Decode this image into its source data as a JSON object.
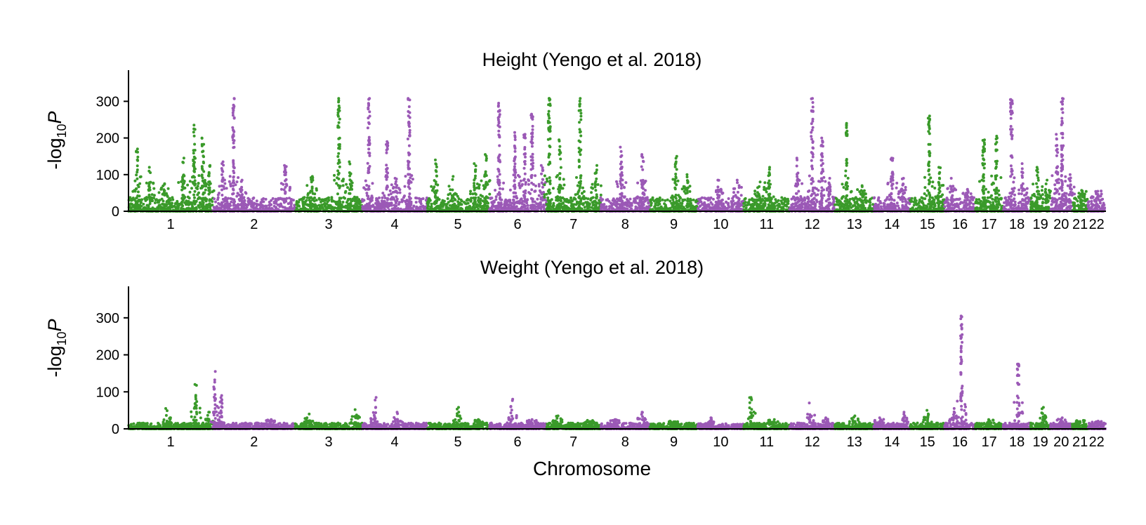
{
  "chart_data": [
    {
      "type": "scatter",
      "title": "Height (Yengo et al. 2018)",
      "ylabel_main": "-log",
      "ylabel_sub": "10",
      "ylabel_italic": "P",
      "xlabel": "",
      "ylim": [
        0,
        385
      ],
      "yticks": [
        0,
        100,
        200,
        300
      ],
      "colors": [
        "#3a9a2a",
        "#9b59b6"
      ],
      "chromosomes": [
        "1",
        "2",
        "3",
        "4",
        "5",
        "6",
        "7",
        "8",
        "9",
        "10",
        "11",
        "12",
        "13",
        "14",
        "15",
        "16",
        "17",
        "18",
        "19",
        "20",
        "21",
        "22"
      ],
      "peaks": [
        {
          "chr": "1",
          "pos": 0.1,
          "y": 170
        },
        {
          "chr": "1",
          "pos": 0.25,
          "y": 120
        },
        {
          "chr": "1",
          "pos": 0.42,
          "y": 75
        },
        {
          "chr": "1",
          "pos": 0.65,
          "y": 145
        },
        {
          "chr": "1",
          "pos": 0.78,
          "y": 235
        },
        {
          "chr": "1",
          "pos": 0.88,
          "y": 200
        },
        {
          "chr": "1",
          "pos": 0.96,
          "y": 125
        },
        {
          "chr": "2",
          "pos": 0.12,
          "y": 135
        },
        {
          "chr": "2",
          "pos": 0.25,
          "y": 308
        },
        {
          "chr": "2",
          "pos": 0.35,
          "y": 85
        },
        {
          "chr": "2",
          "pos": 0.88,
          "y": 125
        },
        {
          "chr": "3",
          "pos": 0.25,
          "y": 95
        },
        {
          "chr": "3",
          "pos": 0.65,
          "y": 308
        },
        {
          "chr": "3",
          "pos": 0.82,
          "y": 135
        },
        {
          "chr": "4",
          "pos": 0.1,
          "y": 308
        },
        {
          "chr": "4",
          "pos": 0.38,
          "y": 190
        },
        {
          "chr": "4",
          "pos": 0.52,
          "y": 90
        },
        {
          "chr": "4",
          "pos": 0.72,
          "y": 308
        },
        {
          "chr": "5",
          "pos": 0.15,
          "y": 140
        },
        {
          "chr": "5",
          "pos": 0.42,
          "y": 95
        },
        {
          "chr": "5",
          "pos": 0.78,
          "y": 130
        },
        {
          "chr": "5",
          "pos": 0.95,
          "y": 155
        },
        {
          "chr": "6",
          "pos": 0.18,
          "y": 295
        },
        {
          "chr": "6",
          "pos": 0.45,
          "y": 215
        },
        {
          "chr": "6",
          "pos": 0.62,
          "y": 210
        },
        {
          "chr": "6",
          "pos": 0.75,
          "y": 265
        },
        {
          "chr": "6",
          "pos": 0.92,
          "y": 125
        },
        {
          "chr": "7",
          "pos": 0.05,
          "y": 308
        },
        {
          "chr": "7",
          "pos": 0.25,
          "y": 195
        },
        {
          "chr": "7",
          "pos": 0.62,
          "y": 308
        },
        {
          "chr": "7",
          "pos": 0.92,
          "y": 125
        },
        {
          "chr": "8",
          "pos": 0.42,
          "y": 175
        },
        {
          "chr": "8",
          "pos": 0.85,
          "y": 155
        },
        {
          "chr": "9",
          "pos": 0.55,
          "y": 150
        },
        {
          "chr": "9",
          "pos": 0.78,
          "y": 100
        },
        {
          "chr": "10",
          "pos": 0.45,
          "y": 85
        },
        {
          "chr": "10",
          "pos": 0.88,
          "y": 85
        },
        {
          "chr": "11",
          "pos": 0.35,
          "y": 80
        },
        {
          "chr": "11",
          "pos": 0.55,
          "y": 120
        },
        {
          "chr": "12",
          "pos": 0.18,
          "y": 145
        },
        {
          "chr": "12",
          "pos": 0.5,
          "y": 308
        },
        {
          "chr": "12",
          "pos": 0.72,
          "y": 200
        },
        {
          "chr": "12",
          "pos": 0.88,
          "y": 90
        },
        {
          "chr": "13",
          "pos": 0.3,
          "y": 240
        },
        {
          "chr": "13",
          "pos": 0.7,
          "y": 70
        },
        {
          "chr": "14",
          "pos": 0.5,
          "y": 145
        },
        {
          "chr": "14",
          "pos": 0.8,
          "y": 90
        },
        {
          "chr": "15",
          "pos": 0.55,
          "y": 260
        },
        {
          "chr": "15",
          "pos": 0.85,
          "y": 120
        },
        {
          "chr": "16",
          "pos": 0.25,
          "y": 90
        },
        {
          "chr": "16",
          "pos": 0.75,
          "y": 60
        },
        {
          "chr": "17",
          "pos": 0.3,
          "y": 195
        },
        {
          "chr": "17",
          "pos": 0.75,
          "y": 205
        },
        {
          "chr": "18",
          "pos": 0.3,
          "y": 305
        },
        {
          "chr": "18",
          "pos": 0.7,
          "y": 130
        },
        {
          "chr": "19",
          "pos": 0.35,
          "y": 120
        },
        {
          "chr": "19",
          "pos": 0.8,
          "y": 85
        },
        {
          "chr": "20",
          "pos": 0.3,
          "y": 210
        },
        {
          "chr": "20",
          "pos": 0.55,
          "y": 308
        },
        {
          "chr": "20",
          "pos": 0.9,
          "y": 100
        },
        {
          "chr": "21",
          "pos": 0.6,
          "y": 55
        },
        {
          "chr": "22",
          "pos": 0.5,
          "y": 50
        }
      ]
    },
    {
      "type": "scatter",
      "title": "Weight (Yengo et al. 2018)",
      "ylabel_main": "-log",
      "ylabel_sub": "10",
      "ylabel_italic": "P",
      "xlabel": "Chromosome",
      "ylim": [
        0,
        385
      ],
      "yticks": [
        0,
        100,
        200,
        300
      ],
      "colors": [
        "#3a9a2a",
        "#9b59b6"
      ],
      "chromosomes": [
        "1",
        "2",
        "3",
        "4",
        "5",
        "6",
        "7",
        "8",
        "9",
        "10",
        "11",
        "12",
        "13",
        "14",
        "15",
        "16",
        "17",
        "18",
        "19",
        "20",
        "21",
        "22"
      ],
      "peaks": [
        {
          "chr": "1",
          "pos": 0.45,
          "y": 55
        },
        {
          "chr": "1",
          "pos": 0.8,
          "y": 120
        },
        {
          "chr": "1",
          "pos": 0.95,
          "y": 45
        },
        {
          "chr": "2",
          "pos": 0.02,
          "y": 155
        },
        {
          "chr": "2",
          "pos": 0.1,
          "y": 90
        },
        {
          "chr": "2",
          "pos": 0.7,
          "y": 25
        },
        {
          "chr": "3",
          "pos": 0.2,
          "y": 40
        },
        {
          "chr": "3",
          "pos": 0.9,
          "y": 52
        },
        {
          "chr": "4",
          "pos": 0.2,
          "y": 85
        },
        {
          "chr": "4",
          "pos": 0.55,
          "y": 45
        },
        {
          "chr": "5",
          "pos": 0.5,
          "y": 58
        },
        {
          "chr": "5",
          "pos": 0.85,
          "y": 25
        },
        {
          "chr": "6",
          "pos": 0.4,
          "y": 80
        },
        {
          "chr": "6",
          "pos": 0.75,
          "y": 25
        },
        {
          "chr": "7",
          "pos": 0.2,
          "y": 35
        },
        {
          "chr": "7",
          "pos": 0.8,
          "y": 20
        },
        {
          "chr": "8",
          "pos": 0.3,
          "y": 25
        },
        {
          "chr": "8",
          "pos": 0.85,
          "y": 45
        },
        {
          "chr": "9",
          "pos": 0.5,
          "y": 15
        },
        {
          "chr": "10",
          "pos": 0.3,
          "y": 30
        },
        {
          "chr": "11",
          "pos": 0.15,
          "y": 85
        },
        {
          "chr": "11",
          "pos": 0.65,
          "y": 25
        },
        {
          "chr": "12",
          "pos": 0.45,
          "y": 70
        },
        {
          "chr": "12",
          "pos": 0.8,
          "y": 30
        },
        {
          "chr": "13",
          "pos": 0.5,
          "y": 35
        },
        {
          "chr": "14",
          "pos": 0.15,
          "y": 30
        },
        {
          "chr": "14",
          "pos": 0.85,
          "y": 45
        },
        {
          "chr": "15",
          "pos": 0.5,
          "y": 50
        },
        {
          "chr": "16",
          "pos": 0.3,
          "y": 55
        },
        {
          "chr": "16",
          "pos": 0.55,
          "y": 305
        },
        {
          "chr": "17",
          "pos": 0.5,
          "y": 25
        },
        {
          "chr": "18",
          "pos": 0.55,
          "y": 175
        },
        {
          "chr": "19",
          "pos": 0.6,
          "y": 58
        },
        {
          "chr": "20",
          "pos": 0.5,
          "y": 30
        },
        {
          "chr": "21",
          "pos": 0.5,
          "y": 20
        },
        {
          "chr": "22",
          "pos": 0.5,
          "y": 15
        }
      ]
    }
  ]
}
